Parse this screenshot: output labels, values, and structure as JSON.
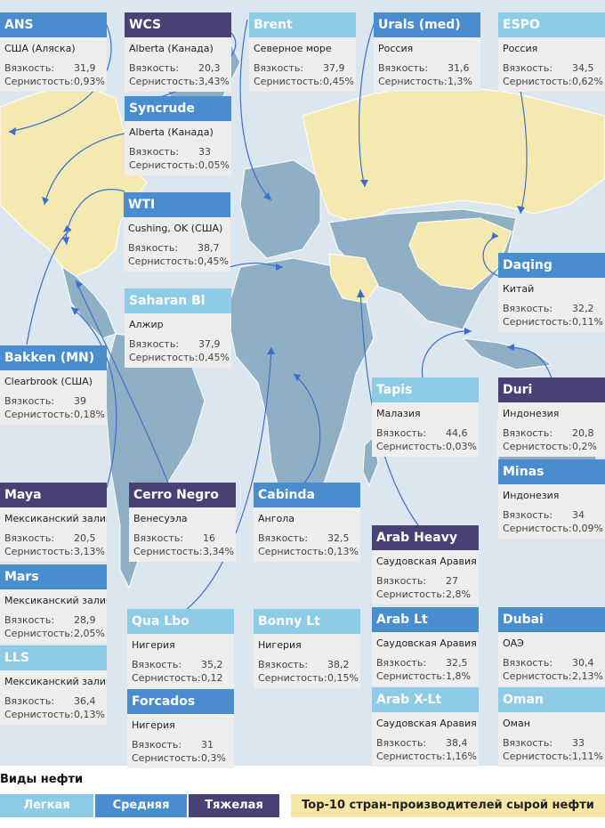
{
  "colors": {
    "light": "#8dcbe6",
    "medium": "#4a8dce",
    "heavy": "#474175",
    "top10": "#f7e7a6",
    "ocean": "#dce6ef",
    "land": "#8fb0c4",
    "arrow": "#3a6fd0"
  },
  "cards": [
    {
      "name": "ANS",
      "location": "США (Аляска)",
      "viscosity_label": "Вязкость:",
      "viscosity": "31,9",
      "sulfur_label": "Сернистость:",
      "sulfur": "0,93%",
      "type": "medium"
    },
    {
      "name": "WCS",
      "location": "Alberta (Канада)",
      "viscosity_label": "Вязкость:",
      "viscosity": "20,3",
      "sulfur_label": "Сернистость:",
      "sulfur": "3,43%",
      "type": "heavy"
    },
    {
      "name": "Brent",
      "location": "Северное море",
      "viscosity_label": "Вязкость:",
      "viscosity": "37,9",
      "sulfur_label": "Сернистость:",
      "sulfur": "0,45%",
      "type": "light"
    },
    {
      "name": "Urals (med)",
      "location": "Россия",
      "viscosity_label": "Вязкость:",
      "viscosity": "31,6",
      "sulfur_label": "Сернистость:",
      "sulfur": "1,3%",
      "type": "medium"
    },
    {
      "name": "ESPO",
      "location": "Россия",
      "viscosity_label": "Вязкость:",
      "viscosity": "34,5",
      "sulfur_label": "Сернистость:",
      "sulfur": "0,62%",
      "type": "light"
    },
    {
      "name": "Syncrude",
      "location": "Alberta (Канада)",
      "viscosity_label": "Вязкость:",
      "viscosity": "33",
      "sulfur_label": "Сернистость:",
      "sulfur": "0,05%",
      "type": "medium"
    },
    {
      "name": "WTI",
      "location": "Cushing, OK (США)",
      "viscosity_label": "Вязкость:",
      "viscosity": "38,7",
      "sulfur_label": "Сернистость:",
      "sulfur": "0,45%",
      "type": "medium"
    },
    {
      "name": "Daqing",
      "location": "Китай",
      "viscosity_label": "Вязкость:",
      "viscosity": "32,2",
      "sulfur_label": "Сернистость:",
      "sulfur": "0,11%",
      "type": "medium"
    },
    {
      "name": "Saharan Bl",
      "location": "Алжир",
      "viscosity_label": "Вязкость:",
      "viscosity": "37,9",
      "sulfur_label": "Сернистость:",
      "sulfur": "0,45%",
      "type": "light"
    },
    {
      "name": "Bakken (MN)",
      "location": "Clearbrook (США)",
      "viscosity_label": "Вязкость:",
      "viscosity": "39",
      "sulfur_label": "Сернистость:",
      "sulfur": "0,18%",
      "type": "medium"
    },
    {
      "name": "Tapis",
      "location": "Малазия",
      "viscosity_label": "Вязкость:",
      "viscosity": "44,6",
      "sulfur_label": "Сернистость:",
      "sulfur": "0,03%",
      "type": "light"
    },
    {
      "name": "Duri",
      "location": "Индонезия",
      "viscosity_label": "Вязкость:",
      "viscosity": "20,8",
      "sulfur_label": "Сернистость:",
      "sulfur": "0,2%",
      "type": "heavy"
    },
    {
      "name": "Minas",
      "location": "Индонезия",
      "viscosity_label": "Вязкость:",
      "viscosity": "34",
      "sulfur_label": "Сернистость:",
      "sulfur": "0,09%",
      "type": "medium"
    },
    {
      "name": "Maya",
      "location": "Мексиканский залив",
      "viscosity_label": "Вязкость:",
      "viscosity": "20,5",
      "sulfur_label": "Сернистость:",
      "sulfur": "3,13%",
      "type": "heavy"
    },
    {
      "name": "Cerro Negro",
      "location": "Венесуэла",
      "viscosity_label": "Вязкость:",
      "viscosity": "16",
      "sulfur_label": "Сернистость:",
      "sulfur": "3,34%",
      "type": "heavy"
    },
    {
      "name": "Cabinda",
      "location": "Ангола",
      "viscosity_label": "Вязкость:",
      "viscosity": "32,5",
      "sulfur_label": "Сернистость:",
      "sulfur": "0,13%",
      "type": "medium"
    },
    {
      "name": "Arab Heavy",
      "location": "Саудовская Аравия",
      "viscosity_label": "Вязкость:",
      "viscosity": "27",
      "sulfur_label": "Сернистость:",
      "sulfur": "2,8%",
      "type": "heavy"
    },
    {
      "name": "Mars",
      "location": "Мексиканский залив",
      "viscosity_label": "Вязкость:",
      "viscosity": "28,9",
      "sulfur_label": "Сернистость:",
      "sulfur": "2,05%",
      "type": "medium"
    },
    {
      "name": "Qua Lbo",
      "location": "Нигерия",
      "viscosity_label": "Вязкость:",
      "viscosity": "35,2",
      "sulfur_label": "Сернистость:",
      "sulfur": "0,12",
      "type": "light"
    },
    {
      "name": "Bonny Lt",
      "location": "Нигерия",
      "viscosity_label": "Вязкость:",
      "viscosity": "38,2",
      "sulfur_label": "Сернистость:",
      "sulfur": "0,15%",
      "type": "light"
    },
    {
      "name": "Arab Lt",
      "location": "Саудовская Аравия",
      "viscosity_label": "Вязкость:",
      "viscosity": "32,5",
      "sulfur_label": "Сернистость:",
      "sulfur": "1,8%",
      "type": "medium"
    },
    {
      "name": "Dubai",
      "location": "ОАЭ",
      "viscosity_label": "Вязкость:",
      "viscosity": "30,4",
      "sulfur_label": "Сернистость:",
      "sulfur": "2,13%",
      "type": "medium"
    },
    {
      "name": "LLS",
      "location": "Мексиканский залив",
      "viscosity_label": "Вязкость:",
      "viscosity": "36,4",
      "sulfur_label": "Сернистость:",
      "sulfur": "0,13%",
      "type": "light"
    },
    {
      "name": "Forcados",
      "location": "Нигерия",
      "viscosity_label": "Вязкость:",
      "viscosity": "31",
      "sulfur_label": "Сернистость:",
      "sulfur": "0,3%",
      "type": "medium"
    },
    {
      "name": "Arab X-Lt",
      "location": "Саудовская Аравия",
      "viscosity_label": "Вязкость:",
      "viscosity": "38,4",
      "sulfur_label": "Сернистость:",
      "sulfur": "1,16%",
      "type": "light"
    },
    {
      "name": "Oman",
      "location": "Оман",
      "viscosity_label": "Вязкость:",
      "viscosity": "33",
      "sulfur_label": "Сернистость:",
      "sulfur": "1,11%",
      "type": "light"
    }
  ],
  "legend": {
    "title": "Виды нефти",
    "light": "Легкая",
    "medium": "Средняя",
    "heavy": "Тяжелая",
    "top10": "Top-10 стран-производителей сырой нефти"
  }
}
